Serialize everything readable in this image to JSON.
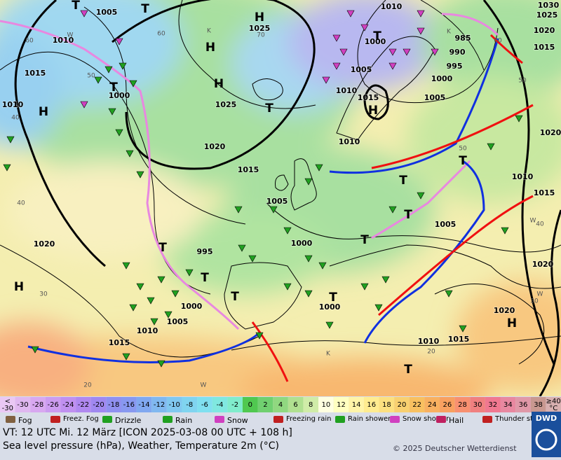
{
  "map": {
    "isobar_labels": [
      "1005",
      "1010",
      "1015",
      "1010",
      "1000",
      "1025",
      "1025",
      "1020",
      "1015",
      "1010",
      "1005",
      "1000",
      "1010",
      "985",
      "990",
      "995",
      "1000",
      "1005",
      "1015",
      "1010",
      "1005",
      "1000",
      "995",
      "1000",
      "1005",
      "1010",
      "1015",
      "1020",
      "1005",
      "1010",
      "1015",
      "1020",
      "1020",
      "1010",
      "1015",
      "1000",
      "1030",
      "1025",
      "1020",
      "1015",
      "1020"
    ],
    "grid_labels": [
      "60",
      "40",
      "40",
      "30",
      "20",
      "50",
      "60",
      "70",
      "60",
      "50",
      "40",
      "30",
      "20",
      "50"
    ],
    "centers": [
      "H",
      "H",
      "H",
      "T",
      "T",
      "T",
      "T",
      "H",
      "T",
      "H",
      "T",
      "T",
      "T",
      "T",
      "T",
      "T",
      "T",
      "T",
      "T",
      "H",
      "H"
    ],
    "region_letters": [
      "K",
      "W",
      "K",
      "W",
      "K",
      "W",
      "W"
    ]
  },
  "scale": {
    "under": [
      "<",
      "-30"
    ],
    "values": [
      -30,
      -28,
      -26,
      -24,
      -22,
      -20,
      -18,
      -16,
      -14,
      -12,
      -10,
      -8,
      -6,
      -4,
      -2,
      0,
      2,
      4,
      6,
      8,
      10,
      12,
      14,
      16,
      18,
      20,
      22,
      24,
      26,
      28,
      30,
      32,
      34,
      36,
      38
    ],
    "over": [
      "≥40",
      "°C"
    ],
    "colors": [
      "#e0b8f0",
      "#d8a8f0",
      "#cc9cf0",
      "#c090f0",
      "#b088f0",
      "#a088f0",
      "#9090f0",
      "#8898f0",
      "#80a8f0",
      "#80b8f0",
      "#80c8f0",
      "#80d4f0",
      "#80e0f0",
      "#80e8e0",
      "#80eccc",
      "#50c850",
      "#70d070",
      "#90d880",
      "#b0e090",
      "#d0eca8",
      "#ffffe0",
      "#ffffc0",
      "#fff4a8",
      "#ffec90",
      "#fce080",
      "#f8d070",
      "#f8c060",
      "#f8b060",
      "#f8a060",
      "#f89070",
      "#f08080",
      "#f07890",
      "#e888a0",
      "#e098a8",
      "#c89890"
    ],
    "under_color": "#eac8f4",
    "over_color": "#d8b0b0"
  },
  "legend": [
    "Fog",
    "Freez. Fog",
    "Drizzle",
    "Rain",
    "Snow",
    "Freezing rain",
    "Rain shower",
    "Snow shower",
    "Hail",
    "Thunder storm"
  ],
  "footer": {
    "valid": "VT: 12 UTC Mi.  12 März [ICON 2025-03-08  00 UTC + 108 h]",
    "desc": "Sea level pressure (hPa), Weather, Temperature 2m (°C)",
    "copyright": "© 2025 Deutscher Wetterdienst",
    "logo": "DWD"
  }
}
